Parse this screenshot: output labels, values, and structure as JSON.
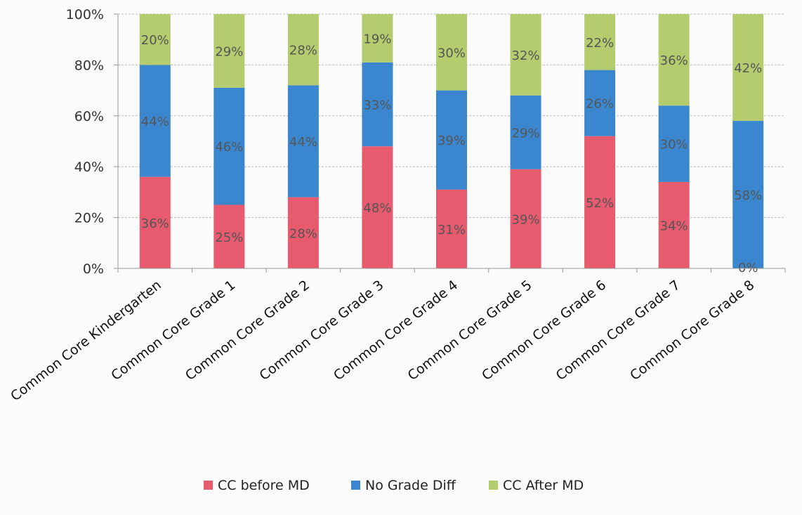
{
  "chart_data": {
    "type": "bar",
    "stacked": true,
    "percent": true,
    "title": "",
    "xlabel": "",
    "ylabel": "",
    "ylim": [
      0,
      100
    ],
    "yticks": [
      "0%",
      "20%",
      "40%",
      "60%",
      "80%",
      "100%"
    ],
    "grid": true,
    "legend_position": "bottom",
    "categories": [
      "Common Core Kindergarten",
      "Common Core Grade 1",
      "Common Core Grade 2",
      "Common Core Grade 3",
      "Common Core Grade 4",
      "Common Core Grade 5",
      "Common Core Grade 6",
      "Common Core Grade 7",
      "Common Core Grade 8"
    ],
    "series": [
      {
        "name": "CC before MD",
        "color": "#e85a6e",
        "values": [
          36,
          25,
          28,
          48,
          31,
          39,
          52,
          34,
          0
        ],
        "labels": [
          "36%",
          "25%",
          "28%",
          "48%",
          "31%",
          "39%",
          "52%",
          "34%",
          "0%"
        ]
      },
      {
        "name": "No Grade Diff",
        "color": "#3b87cf",
        "values": [
          44,
          46,
          44,
          33,
          39,
          29,
          26,
          30,
          58
        ],
        "labels": [
          "44%",
          "46%",
          "44%",
          "33%",
          "39%",
          "29%",
          "26%",
          "30%",
          "58%"
        ]
      },
      {
        "name": "CC After MD",
        "color": "#b5cc6e",
        "values": [
          20,
          29,
          28,
          19,
          30,
          32,
          22,
          36,
          42
        ],
        "labels": [
          "20%",
          "29%",
          "28%",
          "19%",
          "30%",
          "32%",
          "22%",
          "36%",
          "42%"
        ]
      }
    ]
  }
}
